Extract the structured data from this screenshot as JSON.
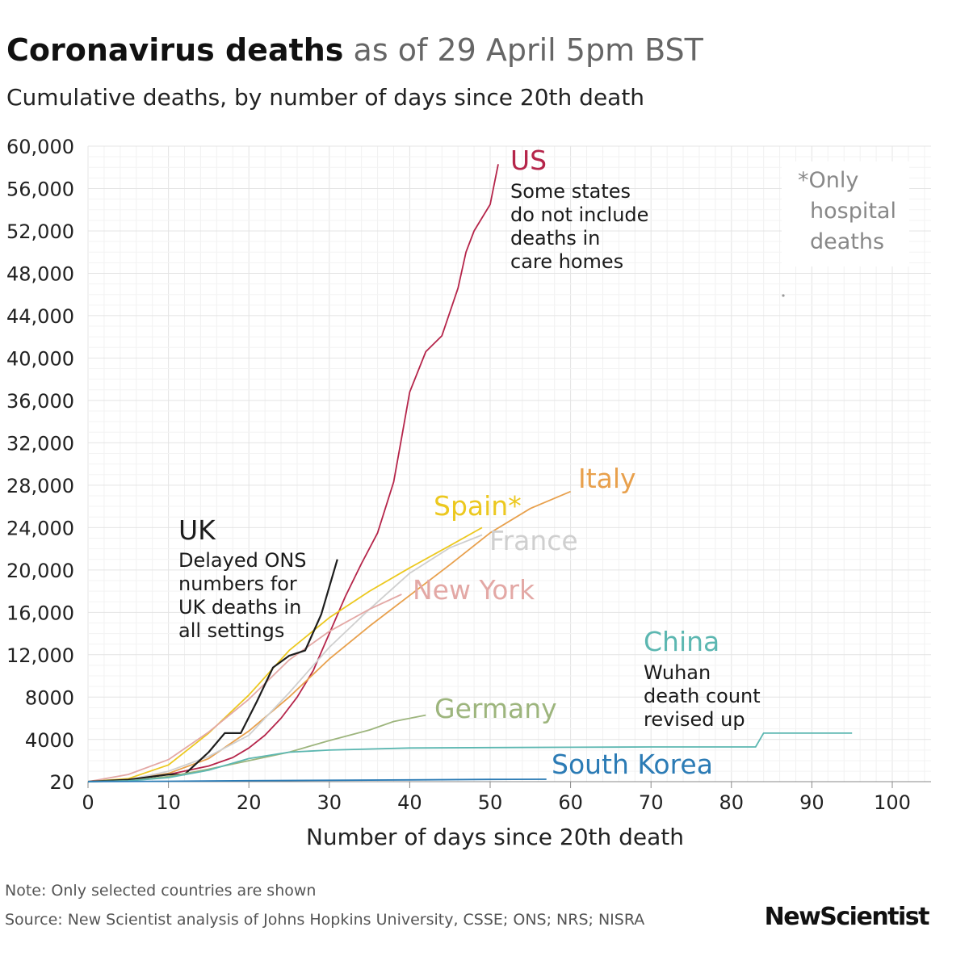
{
  "header": {
    "title_bold": "Coronavirus deaths",
    "title_rest": "as of 29 April 5pm BST",
    "subtitle": "Cumulative deaths, by number of days since 20th death"
  },
  "footer": {
    "note": "Note: Only selected countries are shown",
    "source": "Source: New Scientist analysis of Johns Hopkins University, CSSE; ONS; NRS; NISRA",
    "logo": "NewScientist"
  },
  "chart_data": {
    "type": "line",
    "title": "Coronavirus deaths as of 29 April 5pm BST",
    "subtitle": "Cumulative deaths, by number of days since 20th death",
    "xlabel": "Number of days since 20th death",
    "ylabel": "",
    "xlim": [
      0,
      105
    ],
    "ylim": [
      20,
      60000
    ],
    "x_ticks": [
      0,
      10,
      20,
      30,
      40,
      50,
      60,
      70,
      80,
      90,
      100
    ],
    "x_tick_labels": [
      "0",
      "10",
      "20",
      "30",
      "40",
      "50",
      "60",
      "70",
      "80",
      "90",
      "100"
    ],
    "y_ticks": [
      20,
      4000,
      8000,
      12000,
      16000,
      20000,
      24000,
      28000,
      32000,
      36000,
      40000,
      44000,
      48000,
      52000,
      56000,
      60000
    ],
    "y_tick_labels": [
      "20",
      "4000",
      "8000",
      "12,000",
      "16,000",
      "20,000",
      "24,000",
      "28,000",
      "32,000",
      "36,000",
      "40,000",
      "44,000",
      "48,000",
      "52,000",
      "56,000",
      "60,000"
    ],
    "grid": true,
    "series": [
      {
        "name": "US",
        "color": "#b5254a",
        "x": [
          0,
          5,
          10,
          15,
          18,
          20,
          22,
          24,
          26,
          28,
          30,
          32,
          34,
          36,
          38,
          39,
          40,
          42,
          44,
          46,
          47,
          48,
          50,
          51
        ],
        "y": [
          20,
          200,
          700,
          1500,
          2300,
          3200,
          4400,
          6000,
          8000,
          10500,
          14000,
          17500,
          20600,
          23500,
          28300,
          32500,
          36800,
          40600,
          42100,
          46600,
          50000,
          52000,
          54500,
          58300
        ]
      },
      {
        "name": "Italy",
        "color": "#e8a04c",
        "x": [
          0,
          5,
          10,
          15,
          20,
          25,
          30,
          35,
          40,
          45,
          50,
          55,
          60
        ],
        "y": [
          20,
          200,
          800,
          2200,
          4800,
          8000,
          11600,
          14700,
          17600,
          20500,
          23500,
          25800,
          27400
        ]
      },
      {
        "name": "Spain*",
        "color": "#ecc81f",
        "x": [
          0,
          5,
          10,
          15,
          20,
          25,
          30,
          35,
          40,
          45,
          49
        ],
        "y": [
          20,
          300,
          1600,
          4600,
          8200,
          12400,
          15500,
          18000,
          20200,
          22300,
          24000
        ]
      },
      {
        "name": "France",
        "color": "#cfcfcf",
        "x": [
          0,
          5,
          10,
          15,
          20,
          25,
          30,
          35,
          40,
          45,
          49
        ],
        "y": [
          20,
          200,
          1000,
          2400,
          4400,
          8400,
          12700,
          16300,
          19700,
          22100,
          23300
        ]
      },
      {
        "name": "New York",
        "color": "#e3a8a5",
        "x": [
          0,
          5,
          10,
          15,
          20,
          25,
          30,
          35,
          39
        ],
        "y": [
          20,
          700,
          2100,
          4700,
          7800,
          11500,
          14200,
          16300,
          17700
        ]
      },
      {
        "name": "UK",
        "color": "#1d1d1d",
        "x": [
          0,
          5,
          10,
          12,
          15,
          17,
          19,
          21,
          23,
          25,
          27,
          29,
          31
        ],
        "y": [
          20,
          200,
          700,
          700,
          2800,
          4600,
          4600,
          7600,
          10800,
          11900,
          12400,
          15800,
          21000
        ]
      },
      {
        "name": "Germany",
        "color": "#9db57d",
        "x": [
          0,
          5,
          10,
          15,
          20,
          25,
          30,
          35,
          38,
          42
        ],
        "y": [
          20,
          100,
          500,
          1200,
          2000,
          2800,
          3900,
          4900,
          5700,
          6300
        ]
      },
      {
        "name": "China",
        "color": "#5cb7b1",
        "x": [
          0,
          5,
          10,
          15,
          20,
          25,
          30,
          40,
          50,
          60,
          70,
          83,
          84,
          95
        ],
        "y": [
          20,
          100,
          400,
          1100,
          2200,
          2800,
          3000,
          3200,
          3240,
          3270,
          3300,
          3300,
          4600,
          4600
        ]
      },
      {
        "name": "South Korea",
        "color": "#2b7bb5",
        "x": [
          0,
          10,
          20,
          30,
          40,
          50,
          57
        ],
        "y": [
          20,
          60,
          110,
          150,
          190,
          230,
          250
        ]
      }
    ],
    "annotations": [
      {
        "series": "US",
        "label": "US",
        "note": [
          "Some states",
          "do not include",
          "deaths in",
          "care homes"
        ]
      },
      {
        "series": "UK",
        "label": "UK",
        "note": [
          "Delayed ONS",
          "numbers for",
          "UK deaths in",
          "all settings"
        ]
      },
      {
        "series": "China",
        "label": "China",
        "note": [
          "Wuhan",
          "death count",
          "revised up"
        ]
      },
      {
        "label": "*Only hospital deaths",
        "note": [
          "*Only",
          "hospital",
          "deaths"
        ]
      }
    ]
  }
}
